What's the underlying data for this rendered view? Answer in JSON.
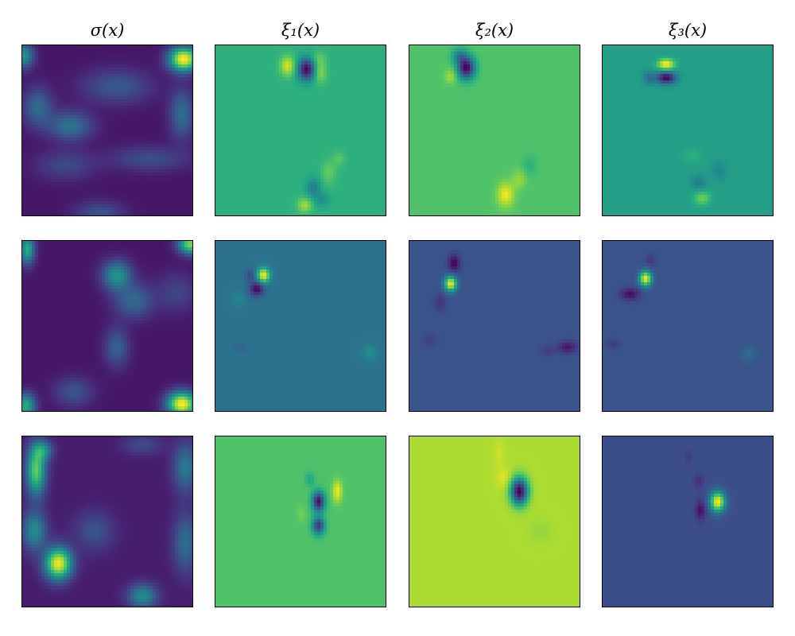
{
  "chart_data": {
    "type": "heatmap",
    "colormap": "viridis",
    "axes_visible": false,
    "grid": false,
    "column_titles": [
      "σ(x)",
      "ξ₁(x)",
      "ξ₂(x)",
      "ξ₃(x)"
    ],
    "rows": [
      {
        "panels": [
          {
            "title": "σ(x)",
            "base": 0.06,
            "blobs": [
              {
                "x": 0.94,
                "y": 0.08,
                "sx": 0.06,
                "sy": 0.05,
                "v": 0.95
              },
              {
                "x": 0.01,
                "y": 0.06,
                "sx": 0.04,
                "sy": 0.05,
                "v": 0.45
              },
              {
                "x": 0.28,
                "y": 0.47,
                "sx": 0.09,
                "sy": 0.06,
                "v": 0.32
              },
              {
                "x": 0.09,
                "y": 0.36,
                "sx": 0.06,
                "sy": 0.08,
                "v": 0.28
              },
              {
                "x": 0.55,
                "y": 0.24,
                "sx": 0.14,
                "sy": 0.07,
                "v": 0.22
              },
              {
                "x": 0.93,
                "y": 0.4,
                "sx": 0.05,
                "sy": 0.1,
                "v": 0.3
              },
              {
                "x": 0.74,
                "y": 0.66,
                "sx": 0.16,
                "sy": 0.05,
                "v": 0.18
              },
              {
                "x": 0.25,
                "y": 0.7,
                "sx": 0.12,
                "sy": 0.06,
                "v": 0.16
              },
              {
                "x": 0.45,
                "y": 0.98,
                "sx": 0.1,
                "sy": 0.05,
                "v": 0.2
              }
            ]
          },
          {
            "title": "ξ₁(x)",
            "base": 0.64,
            "blobs": [
              {
                "x": 0.53,
                "y": 0.14,
                "sx": 0.035,
                "sy": 0.045,
                "v": -0.62
              },
              {
                "x": 0.42,
                "y": 0.12,
                "sx": 0.03,
                "sy": 0.04,
                "v": 0.3
              },
              {
                "x": 0.61,
                "y": 0.16,
                "sx": 0.025,
                "sy": 0.04,
                "v": 0.2
              },
              {
                "x": 0.6,
                "y": 0.08,
                "sx": 0.03,
                "sy": 0.03,
                "v": 0.12
              },
              {
                "x": 0.57,
                "y": 0.83,
                "sx": 0.03,
                "sy": 0.04,
                "v": -0.22
              },
              {
                "x": 0.52,
                "y": 0.93,
                "sx": 0.03,
                "sy": 0.03,
                "v": 0.22
              },
              {
                "x": 0.66,
                "y": 0.74,
                "sx": 0.03,
                "sy": 0.05,
                "v": 0.12
              },
              {
                "x": 0.72,
                "y": 0.66,
                "sx": 0.025,
                "sy": 0.03,
                "v": 0.1
              },
              {
                "x": 0.62,
                "y": 0.9,
                "sx": 0.03,
                "sy": 0.03,
                "v": -0.14
              }
            ]
          },
          {
            "title": "ξ₂(x)",
            "base": 0.72,
            "blobs": [
              {
                "x": 0.33,
                "y": 0.13,
                "sx": 0.035,
                "sy": 0.045,
                "v": -0.72
              },
              {
                "x": 0.29,
                "y": 0.06,
                "sx": 0.03,
                "sy": 0.03,
                "v": -0.25
              },
              {
                "x": 0.24,
                "y": 0.18,
                "sx": 0.025,
                "sy": 0.03,
                "v": 0.15
              },
              {
                "x": 0.56,
                "y": 0.87,
                "sx": 0.035,
                "sy": 0.05,
                "v": 0.26
              },
              {
                "x": 0.64,
                "y": 0.78,
                "sx": 0.03,
                "sy": 0.04,
                "v": 0.12
              },
              {
                "x": 0.7,
                "y": 0.7,
                "sx": 0.03,
                "sy": 0.04,
                "v": -0.08
              }
            ]
          },
          {
            "title": "ξ₃(x)",
            "base": 0.56,
            "blobs": [
              {
                "x": 0.37,
                "y": 0.11,
                "sx": 0.035,
                "sy": 0.022,
                "v": 0.45
              },
              {
                "x": 0.37,
                "y": 0.19,
                "sx": 0.04,
                "sy": 0.025,
                "v": -0.55
              },
              {
                "x": 0.27,
                "y": 0.19,
                "sx": 0.025,
                "sy": 0.03,
                "v": -0.18
              },
              {
                "x": 0.58,
                "y": 0.89,
                "sx": 0.035,
                "sy": 0.03,
                "v": 0.22
              },
              {
                "x": 0.56,
                "y": 0.8,
                "sx": 0.03,
                "sy": 0.03,
                "v": -0.14
              },
              {
                "x": 0.68,
                "y": 0.73,
                "sx": 0.03,
                "sy": 0.04,
                "v": -0.1
              },
              {
                "x": 0.52,
                "y": 0.64,
                "sx": 0.04,
                "sy": 0.03,
                "v": 0.08
              }
            ]
          }
        ]
      },
      {
        "panels": [
          {
            "title": "σ(x)",
            "base": 0.06,
            "blobs": [
              {
                "x": 0.98,
                "y": 0.02,
                "sx": 0.05,
                "sy": 0.04,
                "v": 0.75
              },
              {
                "x": 0.03,
                "y": 0.05,
                "sx": 0.03,
                "sy": 0.06,
                "v": 0.55
              },
              {
                "x": 0.93,
                "y": 0.95,
                "sx": 0.06,
                "sy": 0.05,
                "v": 0.95
              },
              {
                "x": 0.02,
                "y": 0.96,
                "sx": 0.04,
                "sy": 0.05,
                "v": 0.55
              },
              {
                "x": 0.55,
                "y": 0.2,
                "sx": 0.06,
                "sy": 0.06,
                "v": 0.45
              },
              {
                "x": 0.65,
                "y": 0.35,
                "sx": 0.08,
                "sy": 0.07,
                "v": 0.28
              },
              {
                "x": 0.55,
                "y": 0.62,
                "sx": 0.05,
                "sy": 0.08,
                "v": 0.25
              },
              {
                "x": 0.3,
                "y": 0.88,
                "sx": 0.08,
                "sy": 0.06,
                "v": 0.2
              },
              {
                "x": 0.9,
                "y": 0.3,
                "sx": 0.08,
                "sy": 0.08,
                "v": 0.15
              }
            ]
          },
          {
            "title": "ξ₁(x)",
            "base": 0.38,
            "blobs": [
              {
                "x": 0.28,
                "y": 0.2,
                "sx": 0.025,
                "sy": 0.03,
                "v": 0.62
              },
              {
                "x": 0.24,
                "y": 0.28,
                "sx": 0.03,
                "sy": 0.03,
                "v": -0.36
              },
              {
                "x": 0.2,
                "y": 0.2,
                "sx": 0.02,
                "sy": 0.025,
                "v": -0.15
              },
              {
                "x": 0.13,
                "y": 0.34,
                "sx": 0.025,
                "sy": 0.03,
                "v": 0.08
              },
              {
                "x": 0.9,
                "y": 0.65,
                "sx": 0.03,
                "sy": 0.03,
                "v": 0.12
              },
              {
                "x": 0.15,
                "y": 0.62,
                "sx": 0.03,
                "sy": 0.02,
                "v": -0.06
              }
            ]
          },
          {
            "title": "ξ₂(x)",
            "base": 0.26,
            "blobs": [
              {
                "x": 0.24,
                "y": 0.25,
                "sx": 0.025,
                "sy": 0.03,
                "v": 0.72
              },
              {
                "x": 0.26,
                "y": 0.13,
                "sx": 0.025,
                "sy": 0.035,
                "v": -0.25
              },
              {
                "x": 0.18,
                "y": 0.36,
                "sx": 0.025,
                "sy": 0.04,
                "v": -0.1
              },
              {
                "x": 0.92,
                "y": 0.62,
                "sx": 0.04,
                "sy": 0.025,
                "v": -0.2
              },
              {
                "x": 0.8,
                "y": 0.64,
                "sx": 0.03,
                "sy": 0.02,
                "v": -0.08
              },
              {
                "x": 0.12,
                "y": 0.58,
                "sx": 0.03,
                "sy": 0.03,
                "v": -0.06
              }
            ]
          },
          {
            "title": "ξ₃(x)",
            "base": 0.26,
            "blobs": [
              {
                "x": 0.25,
                "y": 0.22,
                "sx": 0.025,
                "sy": 0.03,
                "v": 0.72
              },
              {
                "x": 0.16,
                "y": 0.31,
                "sx": 0.04,
                "sy": 0.025,
                "v": -0.22
              },
              {
                "x": 0.28,
                "y": 0.11,
                "sx": 0.02,
                "sy": 0.025,
                "v": -0.1
              },
              {
                "x": 0.85,
                "y": 0.66,
                "sx": 0.03,
                "sy": 0.03,
                "v": 0.1
              },
              {
                "x": 0.06,
                "y": 0.6,
                "sx": 0.03,
                "sy": 0.02,
                "v": -0.08
              }
            ]
          }
        ]
      },
      {
        "panels": [
          {
            "title": "σ(x)",
            "base": 0.08,
            "blobs": [
              {
                "x": 0.21,
                "y": 0.74,
                "sx": 0.055,
                "sy": 0.065,
                "v": 0.9
              },
              {
                "x": 0.08,
                "y": 0.2,
                "sx": 0.04,
                "sy": 0.1,
                "v": 0.68
              },
              {
                "x": 0.12,
                "y": 0.08,
                "sx": 0.04,
                "sy": 0.04,
                "v": 0.35
              },
              {
                "x": 0.07,
                "y": 0.55,
                "sx": 0.05,
                "sy": 0.08,
                "v": 0.4
              },
              {
                "x": 0.7,
                "y": 0.93,
                "sx": 0.06,
                "sy": 0.05,
                "v": 0.4
              },
              {
                "x": 0.95,
                "y": 0.18,
                "sx": 0.05,
                "sy": 0.1,
                "v": 0.32
              },
              {
                "x": 0.95,
                "y": 0.62,
                "sx": 0.05,
                "sy": 0.12,
                "v": 0.28
              },
              {
                "x": 0.42,
                "y": 0.55,
                "sx": 0.08,
                "sy": 0.08,
                "v": 0.18
              },
              {
                "x": 0.7,
                "y": 0.05,
                "sx": 0.08,
                "sy": 0.04,
                "v": 0.15
              }
            ]
          },
          {
            "title": "ξ₁(x)",
            "base": 0.72,
            "blobs": [
              {
                "x": 0.6,
                "y": 0.38,
                "sx": 0.025,
                "sy": 0.04,
                "v": -0.68
              },
              {
                "x": 0.6,
                "y": 0.52,
                "sx": 0.025,
                "sy": 0.035,
                "v": -0.55
              },
              {
                "x": 0.71,
                "y": 0.32,
                "sx": 0.02,
                "sy": 0.045,
                "v": 0.26
              },
              {
                "x": 0.55,
                "y": 0.25,
                "sx": 0.02,
                "sy": 0.03,
                "v": -0.12
              },
              {
                "x": 0.5,
                "y": 0.45,
                "sx": 0.02,
                "sy": 0.04,
                "v": 0.06
              }
            ]
          },
          {
            "title": "ξ₂(x)",
            "base": 0.88,
            "blobs": [
              {
                "x": 0.64,
                "y": 0.32,
                "sx": 0.035,
                "sy": 0.055,
                "v": -0.88
              },
              {
                "x": 0.55,
                "y": 0.24,
                "sx": 0.03,
                "sy": 0.04,
                "v": 0.08
              },
              {
                "x": 0.52,
                "y": 0.1,
                "sx": 0.02,
                "sy": 0.05,
                "v": 0.05
              },
              {
                "x": 0.76,
                "y": 0.55,
                "sx": 0.05,
                "sy": 0.05,
                "v": -0.04
              }
            ]
          },
          {
            "title": "ξ₃(x)",
            "base": 0.24,
            "blobs": [
              {
                "x": 0.67,
                "y": 0.38,
                "sx": 0.03,
                "sy": 0.04,
                "v": 0.76
              },
              {
                "x": 0.57,
                "y": 0.43,
                "sx": 0.02,
                "sy": 0.04,
                "v": -0.2
              },
              {
                "x": 0.56,
                "y": 0.26,
                "sx": 0.02,
                "sy": 0.03,
                "v": -0.1
              },
              {
                "x": 0.5,
                "y": 0.12,
                "sx": 0.015,
                "sy": 0.03,
                "v": -0.06
              }
            ]
          }
        ]
      }
    ]
  }
}
